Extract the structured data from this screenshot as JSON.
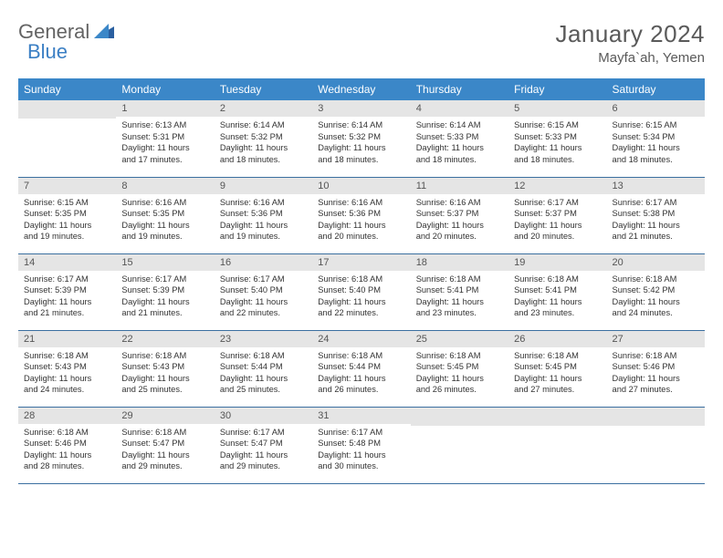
{
  "logo": {
    "text1": "General",
    "text2": "Blue",
    "text1_color": "#636363",
    "text2_color": "#3b7fc4"
  },
  "title": {
    "month": "January 2024",
    "location": "Mayfa`ah, Yemen",
    "color": "#5a5a5a",
    "month_fontsize": 26,
    "location_fontsize": 15
  },
  "colors": {
    "header_bg": "#3b87c8",
    "header_text": "#ffffff",
    "daybar_bg": "#e5e5e5",
    "daybar_text": "#555555",
    "row_border": "#3b6fa0",
    "body_text": "#333333"
  },
  "day_headers": [
    "Sunday",
    "Monday",
    "Tuesday",
    "Wednesday",
    "Thursday",
    "Friday",
    "Saturday"
  ],
  "weeks": [
    [
      {
        "num": "",
        "lines": []
      },
      {
        "num": "1",
        "lines": [
          "Sunrise: 6:13 AM",
          "Sunset: 5:31 PM",
          "Daylight: 11 hours",
          "and 17 minutes."
        ]
      },
      {
        "num": "2",
        "lines": [
          "Sunrise: 6:14 AM",
          "Sunset: 5:32 PM",
          "Daylight: 11 hours",
          "and 18 minutes."
        ]
      },
      {
        "num": "3",
        "lines": [
          "Sunrise: 6:14 AM",
          "Sunset: 5:32 PM",
          "Daylight: 11 hours",
          "and 18 minutes."
        ]
      },
      {
        "num": "4",
        "lines": [
          "Sunrise: 6:14 AM",
          "Sunset: 5:33 PM",
          "Daylight: 11 hours",
          "and 18 minutes."
        ]
      },
      {
        "num": "5",
        "lines": [
          "Sunrise: 6:15 AM",
          "Sunset: 5:33 PM",
          "Daylight: 11 hours",
          "and 18 minutes."
        ]
      },
      {
        "num": "6",
        "lines": [
          "Sunrise: 6:15 AM",
          "Sunset: 5:34 PM",
          "Daylight: 11 hours",
          "and 18 minutes."
        ]
      }
    ],
    [
      {
        "num": "7",
        "lines": [
          "Sunrise: 6:15 AM",
          "Sunset: 5:35 PM",
          "Daylight: 11 hours",
          "and 19 minutes."
        ]
      },
      {
        "num": "8",
        "lines": [
          "Sunrise: 6:16 AM",
          "Sunset: 5:35 PM",
          "Daylight: 11 hours",
          "and 19 minutes."
        ]
      },
      {
        "num": "9",
        "lines": [
          "Sunrise: 6:16 AM",
          "Sunset: 5:36 PM",
          "Daylight: 11 hours",
          "and 19 minutes."
        ]
      },
      {
        "num": "10",
        "lines": [
          "Sunrise: 6:16 AM",
          "Sunset: 5:36 PM",
          "Daylight: 11 hours",
          "and 20 minutes."
        ]
      },
      {
        "num": "11",
        "lines": [
          "Sunrise: 6:16 AM",
          "Sunset: 5:37 PM",
          "Daylight: 11 hours",
          "and 20 minutes."
        ]
      },
      {
        "num": "12",
        "lines": [
          "Sunrise: 6:17 AM",
          "Sunset: 5:37 PM",
          "Daylight: 11 hours",
          "and 20 minutes."
        ]
      },
      {
        "num": "13",
        "lines": [
          "Sunrise: 6:17 AM",
          "Sunset: 5:38 PM",
          "Daylight: 11 hours",
          "and 21 minutes."
        ]
      }
    ],
    [
      {
        "num": "14",
        "lines": [
          "Sunrise: 6:17 AM",
          "Sunset: 5:39 PM",
          "Daylight: 11 hours",
          "and 21 minutes."
        ]
      },
      {
        "num": "15",
        "lines": [
          "Sunrise: 6:17 AM",
          "Sunset: 5:39 PM",
          "Daylight: 11 hours",
          "and 21 minutes."
        ]
      },
      {
        "num": "16",
        "lines": [
          "Sunrise: 6:17 AM",
          "Sunset: 5:40 PM",
          "Daylight: 11 hours",
          "and 22 minutes."
        ]
      },
      {
        "num": "17",
        "lines": [
          "Sunrise: 6:18 AM",
          "Sunset: 5:40 PM",
          "Daylight: 11 hours",
          "and 22 minutes."
        ]
      },
      {
        "num": "18",
        "lines": [
          "Sunrise: 6:18 AM",
          "Sunset: 5:41 PM",
          "Daylight: 11 hours",
          "and 23 minutes."
        ]
      },
      {
        "num": "19",
        "lines": [
          "Sunrise: 6:18 AM",
          "Sunset: 5:41 PM",
          "Daylight: 11 hours",
          "and 23 minutes."
        ]
      },
      {
        "num": "20",
        "lines": [
          "Sunrise: 6:18 AM",
          "Sunset: 5:42 PM",
          "Daylight: 11 hours",
          "and 24 minutes."
        ]
      }
    ],
    [
      {
        "num": "21",
        "lines": [
          "Sunrise: 6:18 AM",
          "Sunset: 5:43 PM",
          "Daylight: 11 hours",
          "and 24 minutes."
        ]
      },
      {
        "num": "22",
        "lines": [
          "Sunrise: 6:18 AM",
          "Sunset: 5:43 PM",
          "Daylight: 11 hours",
          "and 25 minutes."
        ]
      },
      {
        "num": "23",
        "lines": [
          "Sunrise: 6:18 AM",
          "Sunset: 5:44 PM",
          "Daylight: 11 hours",
          "and 25 minutes."
        ]
      },
      {
        "num": "24",
        "lines": [
          "Sunrise: 6:18 AM",
          "Sunset: 5:44 PM",
          "Daylight: 11 hours",
          "and 26 minutes."
        ]
      },
      {
        "num": "25",
        "lines": [
          "Sunrise: 6:18 AM",
          "Sunset: 5:45 PM",
          "Daylight: 11 hours",
          "and 26 minutes."
        ]
      },
      {
        "num": "26",
        "lines": [
          "Sunrise: 6:18 AM",
          "Sunset: 5:45 PM",
          "Daylight: 11 hours",
          "and 27 minutes."
        ]
      },
      {
        "num": "27",
        "lines": [
          "Sunrise: 6:18 AM",
          "Sunset: 5:46 PM",
          "Daylight: 11 hours",
          "and 27 minutes."
        ]
      }
    ],
    [
      {
        "num": "28",
        "lines": [
          "Sunrise: 6:18 AM",
          "Sunset: 5:46 PM",
          "Daylight: 11 hours",
          "and 28 minutes."
        ]
      },
      {
        "num": "29",
        "lines": [
          "Sunrise: 6:18 AM",
          "Sunset: 5:47 PM",
          "Daylight: 11 hours",
          "and 29 minutes."
        ]
      },
      {
        "num": "30",
        "lines": [
          "Sunrise: 6:17 AM",
          "Sunset: 5:47 PM",
          "Daylight: 11 hours",
          "and 29 minutes."
        ]
      },
      {
        "num": "31",
        "lines": [
          "Sunrise: 6:17 AM",
          "Sunset: 5:48 PM",
          "Daylight: 11 hours",
          "and 30 minutes."
        ]
      },
      {
        "num": "",
        "lines": []
      },
      {
        "num": "",
        "lines": []
      },
      {
        "num": "",
        "lines": []
      }
    ]
  ]
}
